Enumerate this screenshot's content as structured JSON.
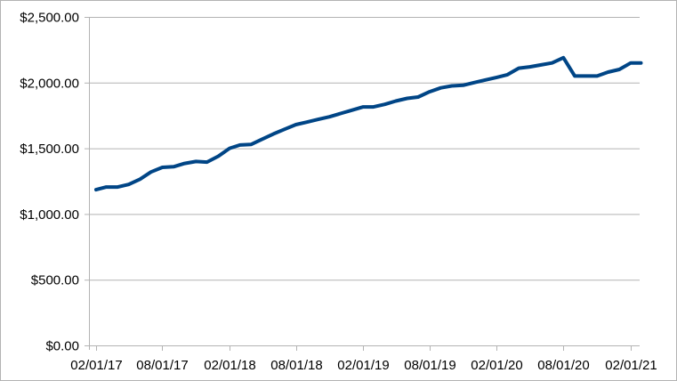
{
  "chart_data": {
    "type": "line",
    "title": "",
    "xlabel": "",
    "ylabel": "",
    "grid": true,
    "legend": "none",
    "ylim": [
      0,
      2500
    ],
    "y_ticks": [
      0,
      500,
      1000,
      1500,
      2000,
      2500
    ],
    "y_tick_labels": [
      "$0.00",
      "$500.00",
      "$1,000.00",
      "$1,500.00",
      "$2,000.00",
      "$2,500.00"
    ],
    "x_ticks": [
      "02/01/17",
      "08/01/17",
      "02/01/18",
      "08/01/18",
      "02/01/19",
      "08/01/19",
      "02/01/20",
      "08/01/20",
      "02/01/21"
    ],
    "line_color": "#004586",
    "series": [
      {
        "x": [
          "02/01/17",
          "03/01/17",
          "04/01/17",
          "05/01/17",
          "06/01/17",
          "07/01/17",
          "08/01/17",
          "09/01/17",
          "10/01/17",
          "11/01/17",
          "12/01/17",
          "01/01/18",
          "02/01/18",
          "03/01/18",
          "04/01/18",
          "05/01/18",
          "06/01/18",
          "07/01/18",
          "08/01/18",
          "09/01/18",
          "10/01/18",
          "11/01/18",
          "12/01/18",
          "01/01/19",
          "02/01/19",
          "03/01/19",
          "04/01/19",
          "05/01/19",
          "06/01/19",
          "07/01/19",
          "08/01/19",
          "09/01/19",
          "10/01/19",
          "11/01/19",
          "12/01/19",
          "01/01/20",
          "02/01/20",
          "03/01/20",
          "04/01/20",
          "05/01/20",
          "06/01/20",
          "07/01/20",
          "08/01/20",
          "09/01/20",
          "10/01/20",
          "11/01/20",
          "12/01/20",
          "01/01/21",
          "02/01/21",
          "03/01/21"
        ],
        "values": [
          1185,
          1205,
          1205,
          1225,
          1265,
          1320,
          1355,
          1360,
          1385,
          1400,
          1395,
          1440,
          1500,
          1525,
          1530,
          1570,
          1610,
          1645,
          1680,
          1700,
          1720,
          1740,
          1765,
          1790,
          1815,
          1815,
          1835,
          1860,
          1880,
          1890,
          1930,
          1960,
          1975,
          1980,
          2000,
          2020,
          2040,
          2060,
          2110,
          2120,
          2135,
          2150,
          2190,
          2050,
          2050,
          2050,
          2080,
          2100,
          2150,
          2150
        ]
      }
    ]
  }
}
